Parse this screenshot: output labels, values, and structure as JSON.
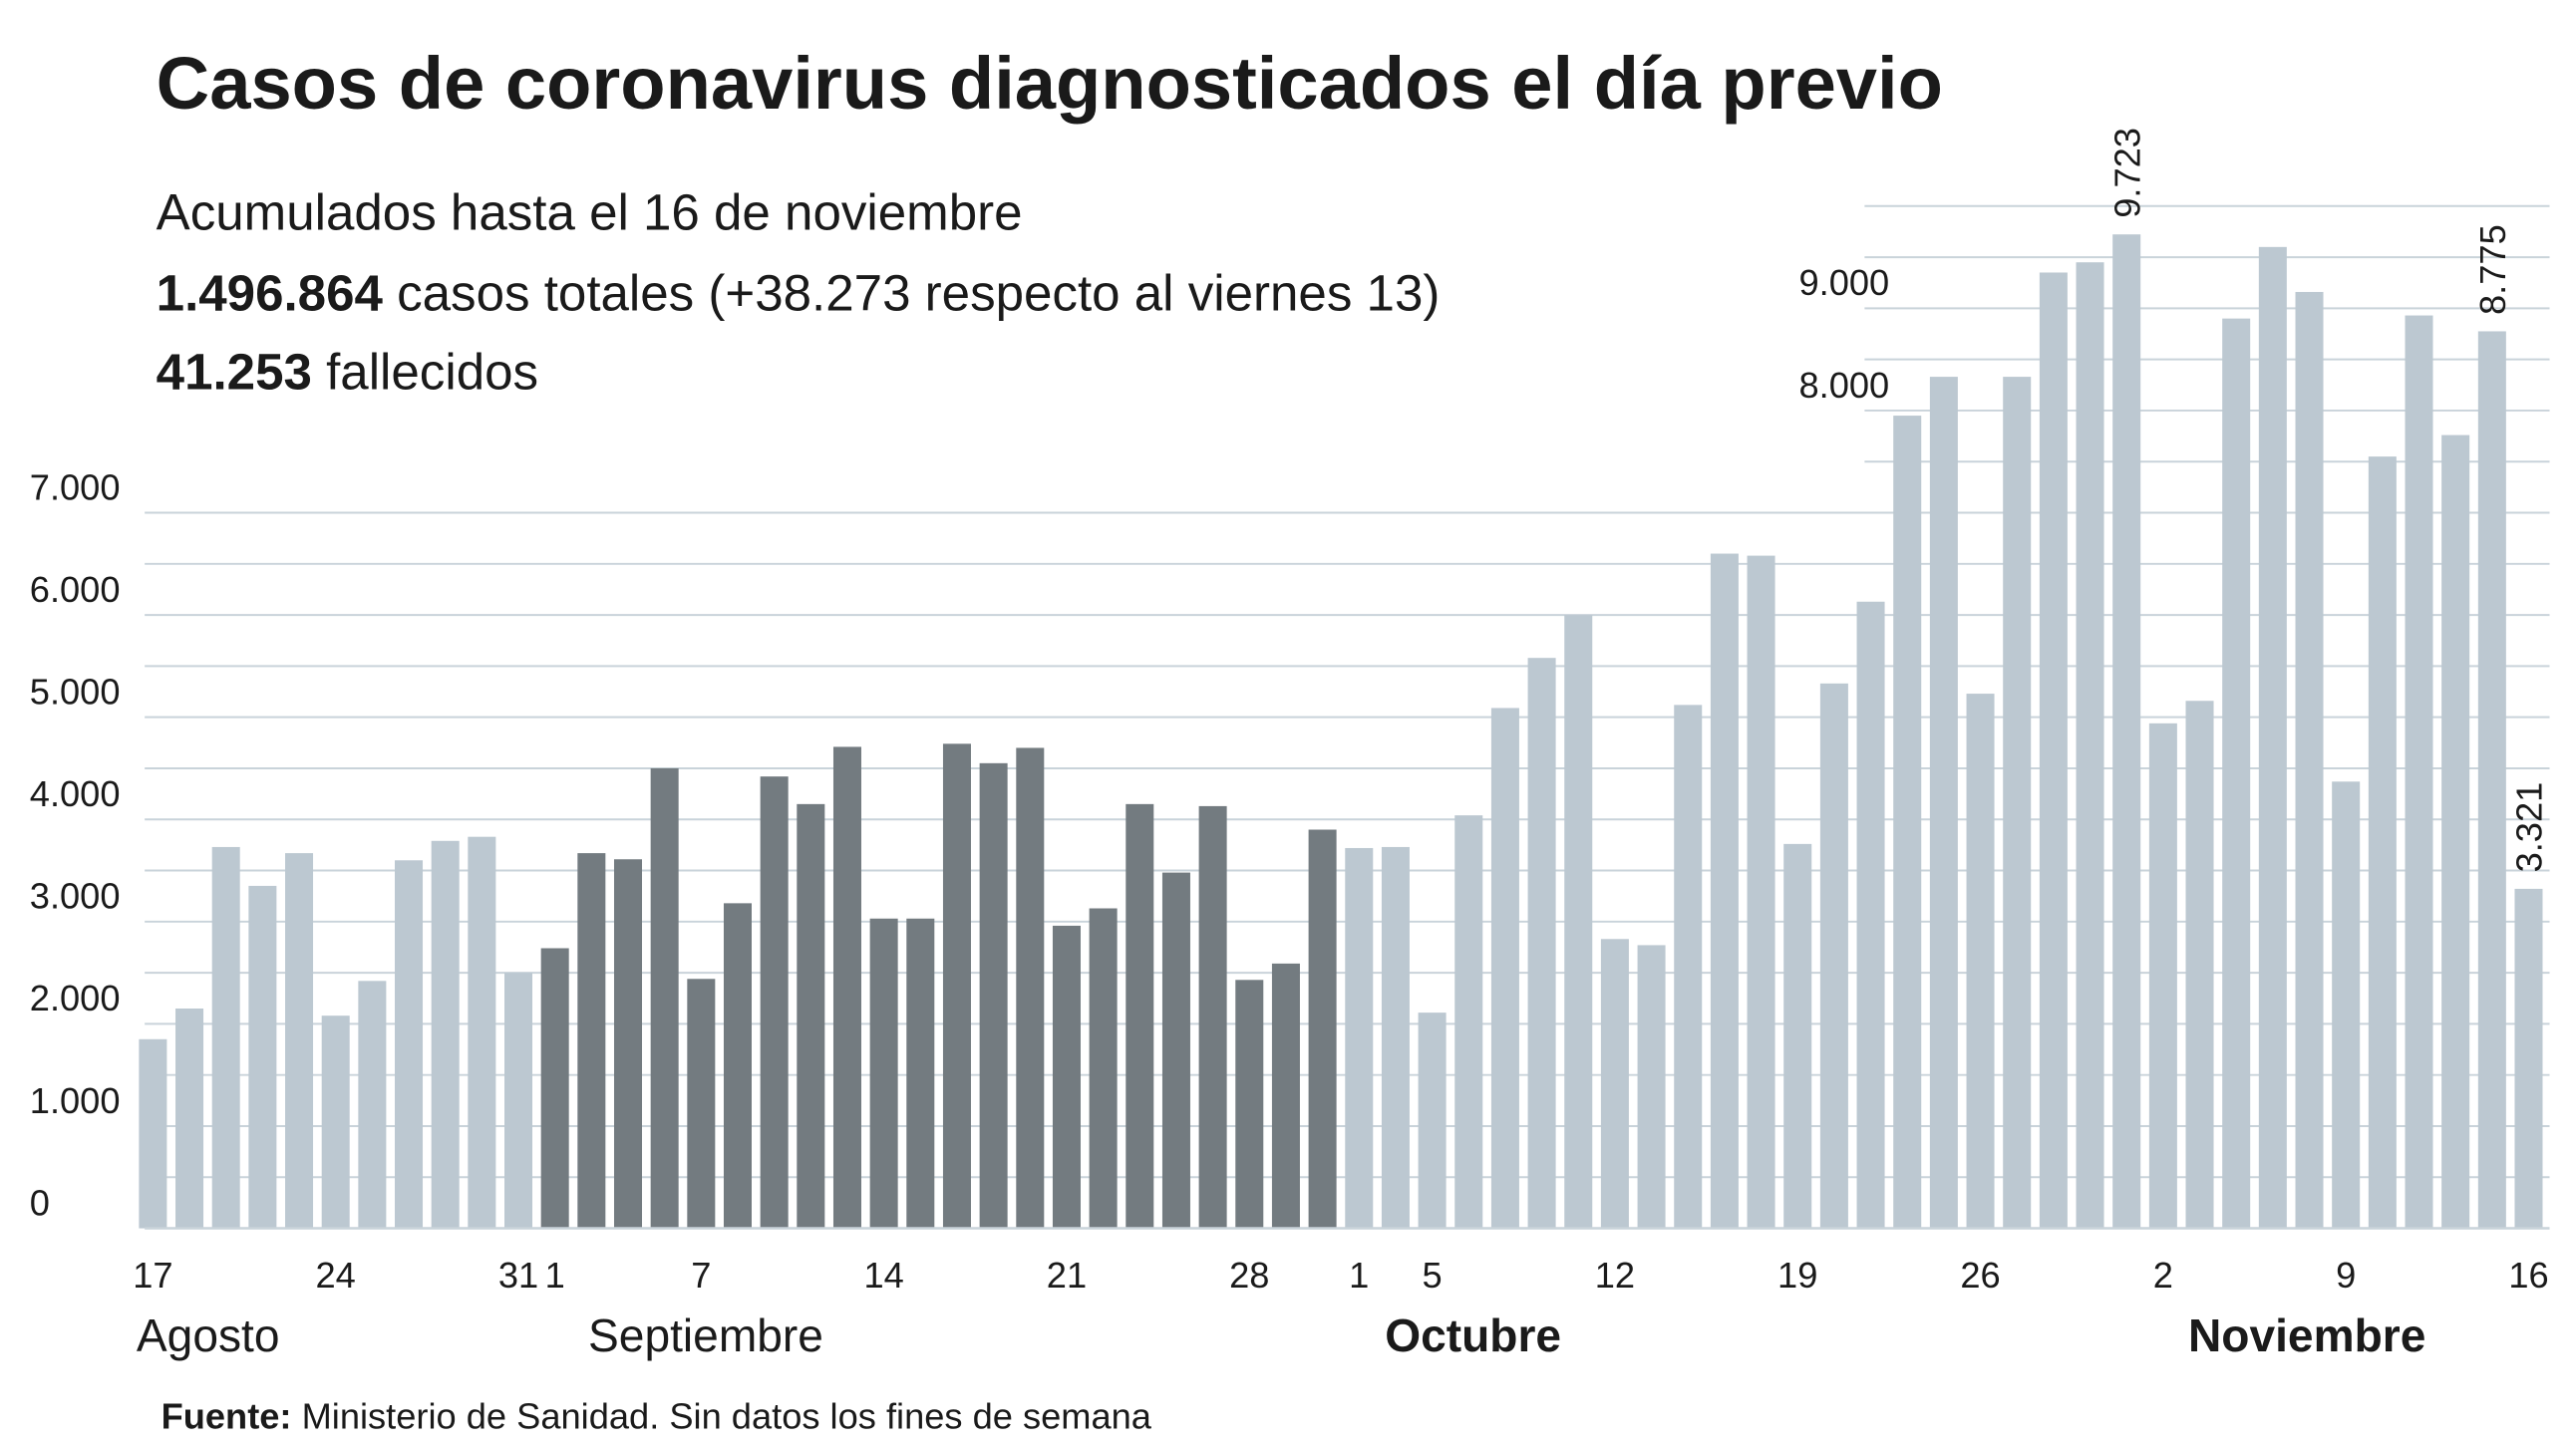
{
  "chart_data": {
    "type": "bar",
    "title": "Casos de coronavirus diagnosticados el día previo",
    "subtitle": "Acumulados hasta el 16 de noviembre",
    "stats": [
      {
        "bold": "1.496.864",
        "text": "casos totales (+38.273 respecto al viernes 13)"
      },
      {
        "bold": "41.253",
        "text": "fallecidos"
      }
    ],
    "source": {
      "label": "Fuente:",
      "text": "Ministerio de Sanidad. Sin datos los fines de semana"
    },
    "months": [
      {
        "label": "Agosto",
        "bold": false
      },
      {
        "label": "Septiembre",
        "bold": false
      },
      {
        "label": "Octubre",
        "bold": true
      },
      {
        "label": "Noviembre",
        "bold": true
      }
    ],
    "categories": [
      "17",
      null,
      null,
      null,
      null,
      "24",
      null,
      null,
      null,
      null,
      "31",
      "1",
      null,
      null,
      null,
      "7",
      null,
      null,
      null,
      null,
      "14",
      null,
      null,
      null,
      null,
      "21",
      null,
      null,
      null,
      null,
      "28",
      null,
      null,
      "1",
      null,
      "5",
      null,
      null,
      null,
      null,
      "12",
      null,
      null,
      null,
      null,
      "19",
      null,
      null,
      null,
      null,
      "26",
      null,
      null,
      null,
      null,
      "2",
      null,
      null,
      null,
      null,
      "9",
      null,
      null,
      null,
      null,
      "16"
    ],
    "values": [
      1850,
      2150,
      3730,
      3350,
      3670,
      2080,
      2420,
      3600,
      3790,
      3830,
      2500,
      2740,
      3670,
      3610,
      4500,
      2440,
      3180,
      4420,
      4150,
      4710,
      3030,
      3030,
      4740,
      4550,
      4700,
      2960,
      3130,
      4150,
      3480,
      4130,
      2430,
      2590,
      3900,
      3720,
      3730,
      2110,
      4040,
      5090,
      5580,
      6000,
      2830,
      2770,
      5120,
      6600,
      6580,
      3760,
      5330,
      6130,
      7950,
      8330,
      5230,
      8330,
      9350,
      9450,
      9723,
      4940,
      5160,
      8900,
      9600,
      9160,
      4370,
      7550,
      8930,
      7760,
      8775,
      3321
    ],
    "value_labels": [
      null,
      null,
      null,
      null,
      null,
      null,
      null,
      null,
      null,
      null,
      null,
      null,
      null,
      null,
      null,
      null,
      null,
      null,
      null,
      null,
      null,
      null,
      null,
      null,
      null,
      null,
      null,
      null,
      null,
      null,
      null,
      null,
      null,
      null,
      null,
      null,
      null,
      null,
      null,
      null,
      null,
      null,
      null,
      null,
      null,
      null,
      null,
      null,
      null,
      null,
      null,
      null,
      null,
      null,
      "9.723",
      null,
      null,
      null,
      null,
      null,
      null,
      null,
      null,
      null,
      "8.775",
      "3.321"
    ],
    "colors": [
      "#bcc8d1",
      "#bcc8d1",
      "#bcc8d1",
      "#bcc8d1",
      "#bcc8d1",
      "#bcc8d1",
      "#bcc8d1",
      "#bcc8d1",
      "#bcc8d1",
      "#bcc8d1",
      "#bcc8d1",
      "#737b80",
      "#737b80",
      "#737b80",
      "#737b80",
      "#737b80",
      "#737b80",
      "#737b80",
      "#737b80",
      "#737b80",
      "#737b80",
      "#737b80",
      "#737b80",
      "#737b80",
      "#737b80",
      "#737b80",
      "#737b80",
      "#737b80",
      "#737b80",
      "#737b80",
      "#737b80",
      "#737b80",
      "#737b80",
      "#bcc8d1",
      "#bcc8d1",
      "#bcc8d1",
      "#bcc8d1",
      "#bcc8d1",
      "#bcc8d1",
      "#bcc8d1",
      "#bcc8d1",
      "#bcc8d1",
      "#bcc8d1",
      "#bcc8d1",
      "#bcc8d1",
      "#bcc8d1",
      "#bcc8d1",
      "#bcc8d1",
      "#bcc8d1",
      "#bcc8d1",
      "#bcc8d1",
      "#bcc8d1",
      "#bcc8d1",
      "#bcc8d1",
      "#bcc8d1",
      "#bcc8d1",
      "#bcc8d1",
      "#bcc8d1",
      "#bcc8d1",
      "#bcc8d1",
      "#bcc8d1",
      "#bcc8d1",
      "#bcc8d1",
      "#bcc8d1",
      "#bcc8d1",
      "#bcc8d1"
    ],
    "ylim": [
      0,
      10000
    ],
    "yticks": [
      {
        "value": 0,
        "label": "0"
      },
      {
        "value": 1000,
        "label": "1.000"
      },
      {
        "value": 2000,
        "label": "2.000"
      },
      {
        "value": 3000,
        "label": "3.000"
      },
      {
        "value": 4000,
        "label": "4.000"
      },
      {
        "value": 5000,
        "label": "5.000"
      },
      {
        "value": 6000,
        "label": "6.000"
      },
      {
        "value": 7000,
        "label": "7.000"
      },
      {
        "value": 8000,
        "label": "8.000"
      },
      {
        "value": 9000,
        "label": "9.000"
      }
    ],
    "minor_yticks": [
      500,
      1500,
      2500,
      3500,
      4500,
      5500,
      6500,
      7500,
      8500,
      9500,
      10000
    ],
    "grid": true
  }
}
